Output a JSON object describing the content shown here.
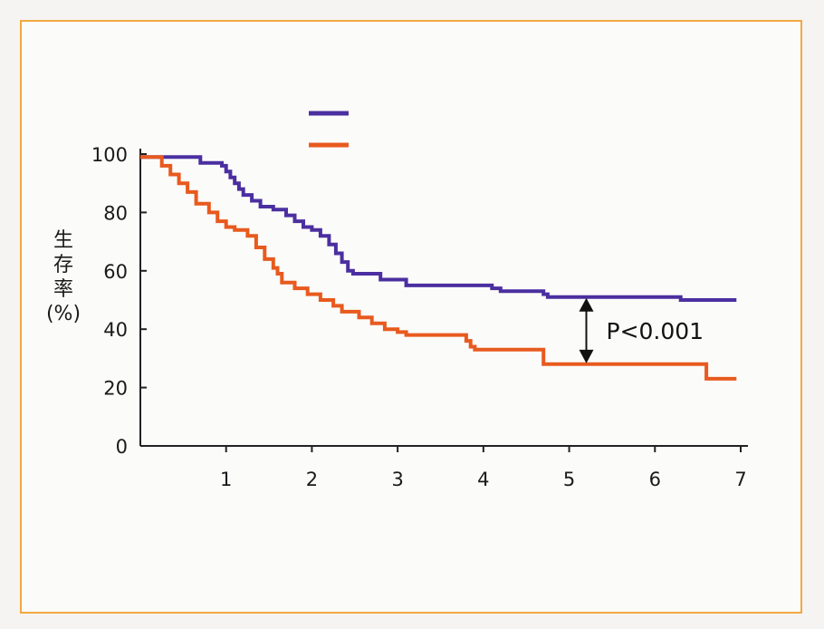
{
  "chart_data": {
    "type": "line",
    "title": "",
    "xlabel": "",
    "ylabel_chars": [
      "生",
      "存",
      "率",
      "(%)"
    ],
    "xlim": [
      0,
      7
    ],
    "ylim": [
      0,
      100
    ],
    "x_ticks": [
      "1",
      "2",
      "3",
      "4",
      "5",
      "6",
      "7"
    ],
    "y_ticks": [
      "0",
      "20",
      "40",
      "60",
      "80",
      "100"
    ],
    "grid": false,
    "legend": {
      "placement": "top-center"
    },
    "series": [
      {
        "color": "#4b2fa0",
        "steps": [
          [
            0,
            99
          ],
          [
            0.55,
            99
          ],
          [
            0.7,
            97
          ],
          [
            0.95,
            96
          ],
          [
            1.0,
            94
          ],
          [
            1.05,
            92
          ],
          [
            1.1,
            90
          ],
          [
            1.15,
            88
          ],
          [
            1.2,
            86
          ],
          [
            1.3,
            84
          ],
          [
            1.4,
            82
          ],
          [
            1.55,
            81
          ],
          [
            1.7,
            79
          ],
          [
            1.8,
            77
          ],
          [
            1.9,
            75
          ],
          [
            2.0,
            74
          ],
          [
            2.1,
            72
          ],
          [
            2.2,
            69
          ],
          [
            2.28,
            66
          ],
          [
            2.35,
            63
          ],
          [
            2.42,
            60
          ],
          [
            2.48,
            59
          ],
          [
            2.8,
            57
          ],
          [
            3.1,
            55
          ],
          [
            4.1,
            54
          ],
          [
            4.2,
            53
          ],
          [
            4.7,
            52
          ],
          [
            4.75,
            51
          ],
          [
            6.3,
            50
          ],
          [
            6.95,
            50
          ]
        ]
      },
      {
        "color": "#e85a1e",
        "steps": [
          [
            0,
            99
          ],
          [
            0.2,
            99
          ],
          [
            0.25,
            96
          ],
          [
            0.35,
            93
          ],
          [
            0.45,
            90
          ],
          [
            0.55,
            87
          ],
          [
            0.65,
            83
          ],
          [
            0.8,
            80
          ],
          [
            0.9,
            77
          ],
          [
            1.0,
            75
          ],
          [
            1.1,
            74
          ],
          [
            1.25,
            72
          ],
          [
            1.35,
            68
          ],
          [
            1.45,
            64
          ],
          [
            1.55,
            61
          ],
          [
            1.6,
            59
          ],
          [
            1.65,
            56
          ],
          [
            1.8,
            54
          ],
          [
            1.95,
            52
          ],
          [
            2.1,
            50
          ],
          [
            2.25,
            48
          ],
          [
            2.35,
            46
          ],
          [
            2.55,
            44
          ],
          [
            2.7,
            42
          ],
          [
            2.85,
            40
          ],
          [
            3.0,
            39
          ],
          [
            3.1,
            38
          ],
          [
            3.8,
            36
          ],
          [
            3.85,
            34
          ],
          [
            3.9,
            33
          ],
          [
            4.7,
            28
          ],
          [
            6.6,
            23
          ],
          [
            6.95,
            23
          ]
        ]
      }
    ],
    "annotation": {
      "text": "P<0.001",
      "x": 5.2,
      "y_top": 51,
      "y_bottom": 28
    }
  }
}
